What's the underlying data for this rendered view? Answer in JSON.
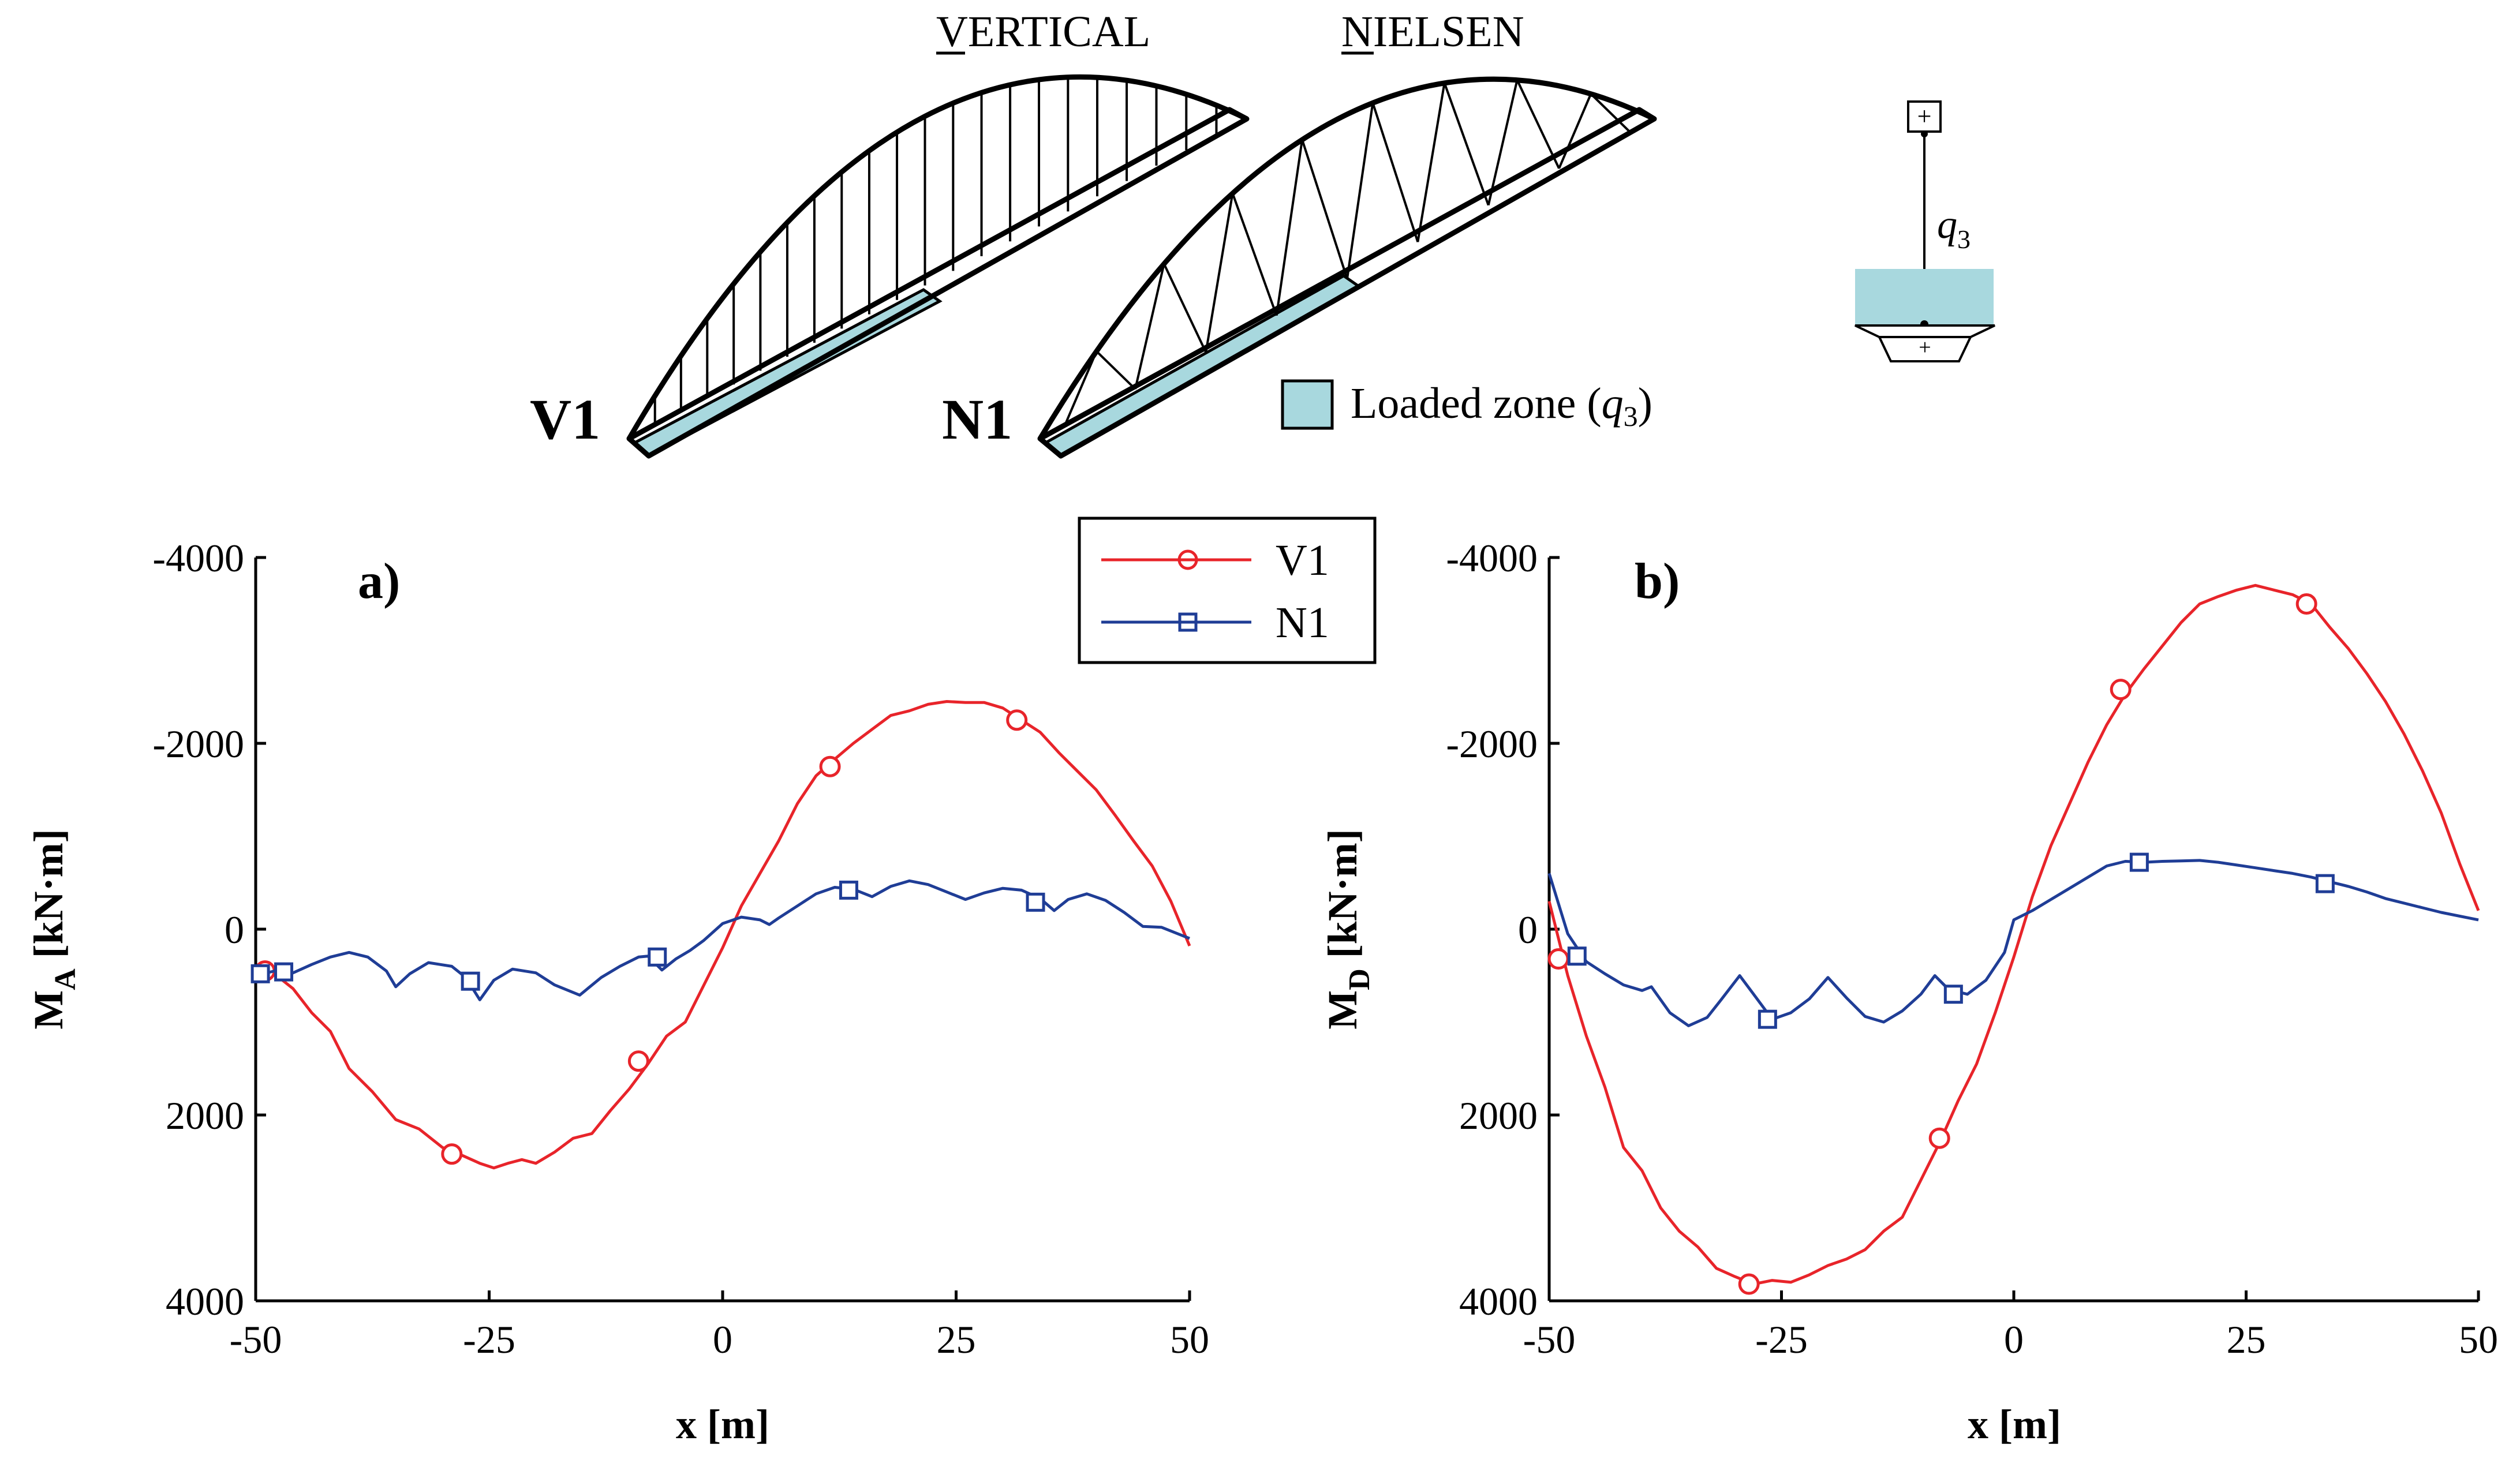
{
  "schematic": {
    "vertical_label": "VERTICAL",
    "nielsen_label": "NIELSEN",
    "v1_label": "V1",
    "n1_label": "N1",
    "loaded_zone_text": "Loaded zone (",
    "loaded_zone_q": "q",
    "loaded_zone_sub": "3",
    "loaded_zone_close": ")",
    "load_symbol_q": "q",
    "load_symbol_sub": "3",
    "plus_sign": "+",
    "loaded_color": "#a8d8de"
  },
  "legend": {
    "v1": "V1",
    "n1": "N1"
  },
  "colors": {
    "v1": "#e8242a",
    "n1": "#1f3d96",
    "axis": "#000000"
  },
  "chart_data": [
    {
      "type": "line",
      "panel_label": "a)",
      "xlabel": "x [m]",
      "ylabel_main": "M",
      "ylabel_sub": "A",
      "ylabel_unit": "[kN·m]",
      "xlim": [
        -50,
        50
      ],
      "ylim": [
        -4000,
        4000
      ],
      "y_inverted": true,
      "x_ticks": [
        -50,
        -25,
        0,
        25,
        50
      ],
      "x_tick_labels": [
        "-50",
        "-25",
        "0",
        "25",
        "50"
      ],
      "y_ticks": [
        -4000,
        -2000,
        0,
        2000,
        4000
      ],
      "y_tick_labels": [
        "-4000",
        "-2000",
        "0",
        "2000",
        "4000"
      ],
      "series": [
        {
          "name": "V1",
          "x": [
            -50,
            -48,
            -46,
            -44,
            -42,
            -40,
            -37.5,
            -35,
            -32.5,
            -30,
            -28,
            -26,
            -24.5,
            -23,
            -21.5,
            -20,
            -18,
            -16,
            -14,
            -12,
            -10,
            -8,
            -6,
            -4,
            -2,
            0,
            2,
            4,
            6,
            8,
            10,
            12,
            14,
            16,
            18,
            20,
            22,
            24,
            26,
            28,
            30,
            32,
            34,
            36,
            38,
            40,
            42,
            44,
            46,
            48,
            50
          ],
          "y": [
            400,
            480,
            640,
            900,
            1100,
            1500,
            1750,
            2050,
            2150,
            2350,
            2430,
            2520,
            2570,
            2520,
            2480,
            2520,
            2400,
            2250,
            2200,
            1950,
            1720,
            1450,
            1150,
            1000,
            600,
            200,
            -250,
            -600,
            -950,
            -1350,
            -1650,
            -1830,
            -2000,
            -2150,
            -2300,
            -2350,
            -2420,
            -2450,
            -2440,
            -2440,
            -2380,
            -2250,
            -2120,
            -1900,
            -1700,
            -1500,
            -1230,
            -950,
            -680,
            -300,
            180
          ],
          "marker": "circle",
          "marker_x": [
            -49,
            -29,
            -9,
            11.5,
            31.5
          ],
          "marker_y": [
            450,
            2420,
            1420,
            -1750,
            -2250
          ]
        },
        {
          "name": "N1",
          "x": [
            -50,
            -48,
            -46,
            -44,
            -42,
            -40,
            -38,
            -36,
            -35,
            -33.5,
            -31.5,
            -29,
            -27.5,
            -26,
            -24.5,
            -22.5,
            -20,
            -18,
            -15.3,
            -13,
            -11,
            -9,
            -8,
            -6.5,
            -5,
            -3.5,
            -2,
            0,
            2,
            4,
            5,
            6,
            8,
            10,
            12,
            14,
            16,
            18,
            20,
            22,
            24,
            26,
            28,
            30,
            32,
            34,
            35.5,
            37,
            39,
            41,
            43,
            45,
            47,
            50
          ],
          "y": [
            500,
            450,
            470,
            380,
            300,
            250,
            300,
            450,
            620,
            480,
            360,
            400,
            520,
            760,
            550,
            430,
            470,
            600,
            710,
            520,
            400,
            300,
            290,
            440,
            320,
            230,
            120,
            -60,
            -130,
            -100,
            -50,
            -120,
            -250,
            -380,
            -450,
            -430,
            -350,
            -460,
            -520,
            -480,
            -400,
            -320,
            -390,
            -440,
            -420,
            -330,
            -200,
            -320,
            -380,
            -310,
            -180,
            -30,
            -20,
            100
          ],
          "marker": "square",
          "marker_x": [
            -49.5,
            -47,
            -27,
            -7,
            13.5,
            33.5
          ],
          "marker_y": [
            480,
            460,
            560,
            300,
            -420,
            -290
          ]
        }
      ]
    },
    {
      "type": "line",
      "panel_label": "b)",
      "xlabel": "x [m]",
      "ylabel_main": "M",
      "ylabel_sub": "D",
      "ylabel_unit": "[kN·m]",
      "xlim": [
        -50,
        50
      ],
      "ylim": [
        -4000,
        4000
      ],
      "y_inverted": true,
      "x_ticks": [
        -50,
        -25,
        0,
        25,
        50
      ],
      "x_tick_labels": [
        "-50",
        "-25",
        "0",
        "25",
        "50"
      ],
      "y_ticks": [
        -4000,
        -2000,
        0,
        2000,
        4000
      ],
      "y_tick_labels": [
        "-4000",
        "-2000",
        "0",
        "2000",
        "4000"
      ],
      "series": [
        {
          "name": "V1",
          "x": [
            -50,
            -48,
            -46,
            -44,
            -42,
            -40,
            -38,
            -36,
            -34,
            -32,
            -30,
            -28,
            -26,
            -24,
            -22,
            -20,
            -18,
            -16,
            -14,
            -12,
            -10,
            -8,
            -6,
            -4,
            -2,
            0,
            2,
            4,
            6,
            8,
            10,
            12,
            14,
            16,
            18,
            20,
            22,
            24,
            26,
            28,
            30,
            32,
            34,
            36,
            38,
            40,
            42,
            44,
            46,
            48,
            50
          ],
          "y": [
            -300,
            500,
            1150,
            1700,
            2350,
            2600,
            3000,
            3250,
            3420,
            3650,
            3740,
            3820,
            3780,
            3800,
            3720,
            3620,
            3550,
            3450,
            3250,
            3100,
            2700,
            2300,
            1850,
            1450,
            900,
            300,
            -350,
            -900,
            -1350,
            -1800,
            -2200,
            -2530,
            -2800,
            -3050,
            -3300,
            -3500,
            -3580,
            -3650,
            -3700,
            -3650,
            -3600,
            -3500,
            -3250,
            -3020,
            -2750,
            -2450,
            -2100,
            -1700,
            -1250,
            -700,
            -200
          ],
          "marker": "circle",
          "marker_x": [
            -49,
            -28.5,
            -8,
            11.5,
            31.5
          ],
          "marker_y": [
            320,
            3820,
            2250,
            -2580,
            -3500
          ]
        },
        {
          "name": "N1",
          "x": [
            -50,
            -48,
            -46,
            -44,
            -42,
            -40,
            -39,
            -37,
            -35,
            -33,
            -31.5,
            -29.5,
            -28,
            -26,
            -24,
            -22,
            -20,
            -18,
            -16,
            -14,
            -12,
            -10,
            -8.5,
            -7,
            -5,
            -3,
            -1,
            0,
            2,
            4,
            6,
            8,
            10,
            12,
            14,
            16,
            18,
            20,
            22,
            24,
            26,
            28,
            30,
            32,
            34,
            36,
            38,
            40,
            42,
            44,
            46,
            48,
            50
          ],
          "y": [
            -600,
            50,
            350,
            480,
            600,
            660,
            620,
            900,
            1040,
            950,
            760,
            500,
            700,
            970,
            900,
            750,
            520,
            740,
            940,
            1000,
            880,
            700,
            500,
            650,
            700,
            550,
            250,
            -100,
            -200,
            -320,
            -440,
            -560,
            -680,
            -730,
            -720,
            -730,
            -735,
            -740,
            -720,
            -690,
            -660,
            -630,
            -600,
            -560,
            -510,
            -460,
            -400,
            -330,
            -280,
            -230,
            -180,
            -140,
            -100
          ],
          "marker": "square",
          "marker_x": [
            -47,
            -26.5,
            -6.5,
            13.5,
            33.5
          ],
          "marker_y": [
            290,
            970,
            700,
            -720,
            -490
          ]
        }
      ]
    }
  ]
}
